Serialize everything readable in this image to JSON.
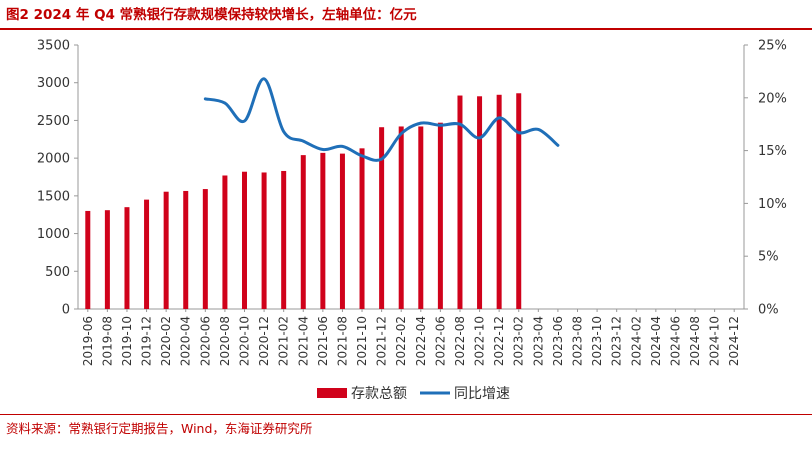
{
  "header": {
    "title": "图2  2024 年 Q4 常熟银行存款规模保持较快增长，左轴单位：亿元"
  },
  "footer": {
    "source": "资料来源：常熟银行定期报告，Wind，东海证券研究所"
  },
  "colors": {
    "bar": "#d0021b",
    "line": "#1f6fb8",
    "accent": "#c00000"
  },
  "chart_data": {
    "type": "bar",
    "categories": [
      "2019-06",
      "2019-08",
      "2019-10",
      "2019-12",
      "2020-02",
      "2020-04",
      "2020-06",
      "2020-08",
      "2020-10",
      "2020-12",
      "2021-02",
      "2021-04",
      "2021-06",
      "2021-08",
      "2021-10",
      "2021-12",
      "2022-02",
      "2022-04",
      "2022-06",
      "2022-08",
      "2022-10",
      "2022-12",
      "2023-02",
      "2023-04",
      "2023-06",
      "2023-08",
      "2023-10",
      "2023-12",
      "2024-02",
      "2024-04",
      "2024-06",
      "2024-08",
      "2024-10",
      "2024-12"
    ],
    "yticks_left": [
      "0",
      "500",
      "1000",
      "1500",
      "2000",
      "2500",
      "3000",
      "3500"
    ],
    "yticks_right": [
      "0%",
      "5%",
      "10%",
      "15%",
      "20%",
      "25%"
    ],
    "ylim_left": [
      0,
      3500
    ],
    "ylim_right": [
      0,
      0.25
    ],
    "series": [
      {
        "name": "存款总额",
        "type": "bar",
        "axis": "left",
        "data": [
          [
            0,
            1300
          ],
          [
            1,
            1310
          ],
          [
            2,
            1350
          ],
          [
            3,
            1450
          ],
          [
            4,
            1555
          ],
          [
            5,
            1565
          ],
          [
            6,
            1590
          ],
          [
            7,
            1770
          ],
          [
            8,
            1820
          ],
          [
            9,
            1810
          ],
          [
            10,
            1830
          ],
          [
            11,
            2040
          ],
          [
            12,
            2070
          ],
          [
            13,
            2060
          ],
          [
            14,
            2130
          ],
          [
            15,
            2410
          ],
          [
            16,
            2420
          ],
          [
            17,
            2420
          ],
          [
            18,
            2470
          ],
          [
            19,
            2830
          ],
          [
            20,
            2820
          ],
          [
            21,
            2840
          ],
          [
            22,
            2860
          ]
        ]
      },
      {
        "name": "同比增速",
        "type": "line",
        "axis": "right",
        "data": [
          [
            6,
            0.199
          ],
          [
            7,
            0.195
          ],
          [
            8,
            0.178
          ],
          [
            9,
            0.218
          ],
          [
            10,
            0.168
          ],
          [
            11,
            0.159
          ],
          [
            12,
            0.151
          ],
          [
            13,
            0.154
          ],
          [
            14,
            0.145
          ],
          [
            15,
            0.142
          ],
          [
            16,
            0.166
          ],
          [
            17,
            0.176
          ],
          [
            18,
            0.174
          ],
          [
            19,
            0.175
          ],
          [
            20,
            0.162
          ],
          [
            21,
            0.181
          ],
          [
            22,
            0.167
          ],
          [
            23,
            0.17
          ],
          [
            24,
            0.155
          ]
        ]
      }
    ],
    "legend_position": "bottom-center",
    "grid": false
  }
}
